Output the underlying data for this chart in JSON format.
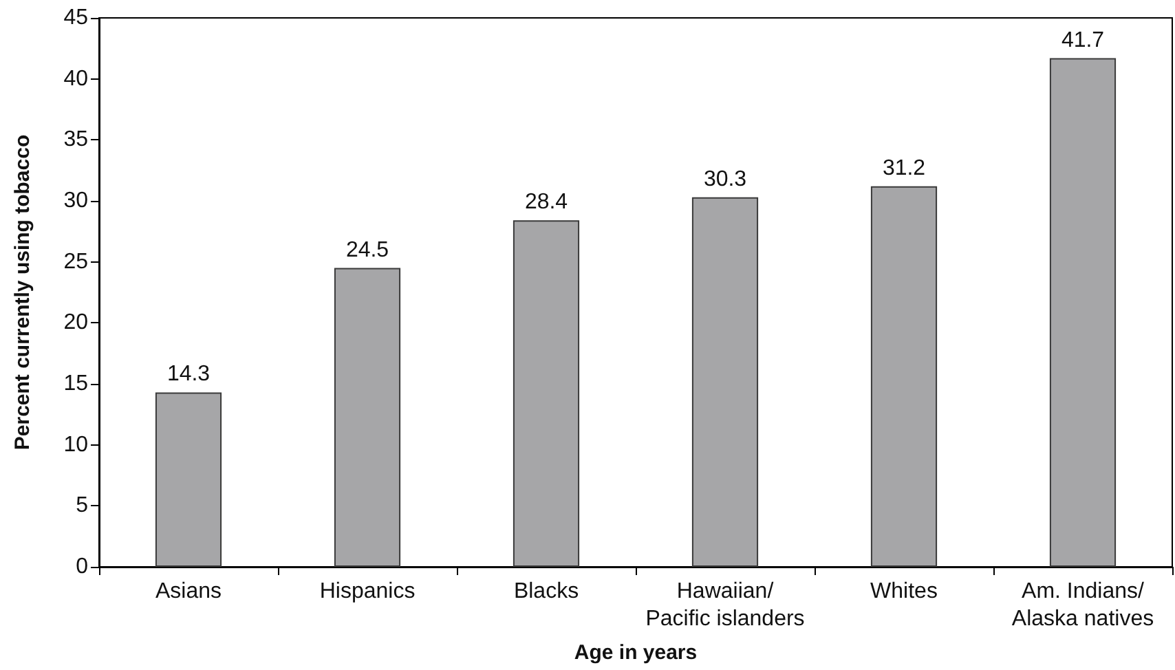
{
  "chart_data": {
    "type": "bar",
    "categories": [
      "Asians",
      "Hispanics",
      "Blacks",
      "Hawaiian/\nPacific islanders",
      "Whites",
      "Am. Indians/\nAlaska natives"
    ],
    "values": [
      14.3,
      24.5,
      28.4,
      30.3,
      31.2,
      41.7
    ],
    "color": "#a6a6a8",
    "xlabel": "Age in years",
    "ylabel": "Percent currently using tobacco",
    "ylim": [
      0,
      45
    ],
    "yticks": [
      0,
      5,
      10,
      15,
      20,
      25,
      30,
      35,
      40,
      45
    ],
    "data_labels": true,
    "grid": false
  }
}
